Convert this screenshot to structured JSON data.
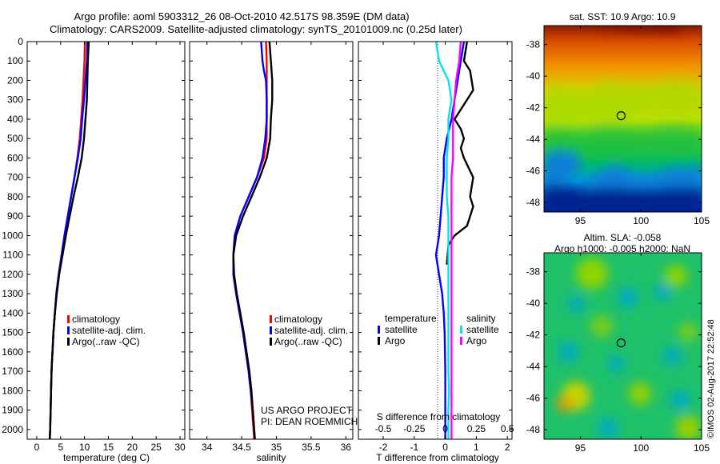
{
  "title_line1": "Argo profile: aoml 5903312_26 08-Oct-2010 42.517S 98.359E (DM data)",
  "title_line2": "Climatology: CARS2009. Satellite-adjusted climatology: synTS_20101009.nc (0.25d later)",
  "credit_line1": "US ARGO PROJECT",
  "credit_line2": "PI: DEAN ROEMMICH",
  "imos_stamp": "©IMOS 02-Aug-2017 22:52:48",
  "colors": {
    "climatology": "#ff0000",
    "satellite": "#0000ff",
    "argo": "#000000",
    "sal_satellite": "#00e5e5",
    "sal_argo": "#ff00ff"
  },
  "chart_data": [
    {
      "type": "line",
      "xlabel": "temperature (deg C)",
      "x_ticks": [
        "0",
        "5",
        "10",
        "15",
        "20",
        "25",
        "30"
      ],
      "xlim": [
        -2,
        31
      ],
      "ylim": [
        0,
        2050
      ],
      "y_reversed": true,
      "y_ticks": [
        "0",
        "100",
        "200",
        "300",
        "400",
        "500",
        "600",
        "700",
        "800",
        "900",
        "1000",
        "1100",
        "1200",
        "1300",
        "1400",
        "1500",
        "1600",
        "1700",
        "1800",
        "1900",
        "2000"
      ],
      "legend": [
        "climatology",
        "satellite-adj. clim.",
        "Argo(..raw -QC)"
      ],
      "series": [
        {
          "name": "climatology",
          "color": "#ff0000",
          "points": [
            [
              10.1,
              0
            ],
            [
              10.0,
              100
            ],
            [
              9.8,
              200
            ],
            [
              9.6,
              300
            ],
            [
              9.3,
              400
            ],
            [
              9.0,
              500
            ],
            [
              8.5,
              600
            ],
            [
              7.9,
              700
            ],
            [
              7.2,
              800
            ],
            [
              6.5,
              900
            ],
            [
              5.8,
              1000
            ],
            [
              5.2,
              1100
            ],
            [
              4.6,
              1200
            ],
            [
              4.1,
              1300
            ],
            [
              3.8,
              1400
            ],
            [
              3.5,
              1500
            ],
            [
              3.3,
              1600
            ],
            [
              3.1,
              1700
            ],
            [
              3.0,
              1800
            ],
            [
              2.9,
              1900
            ],
            [
              2.8,
              2000
            ],
            [
              2.7,
              2050
            ]
          ]
        },
        {
          "name": "satellite-adj. clim.",
          "color": "#0000ff",
          "points": [
            [
              10.6,
              0
            ],
            [
              10.5,
              100
            ],
            [
              10.2,
              200
            ],
            [
              9.9,
              300
            ],
            [
              9.5,
              400
            ],
            [
              9.2,
              500
            ],
            [
              8.6,
              600
            ],
            [
              7.9,
              700
            ],
            [
              7.2,
              800
            ],
            [
              6.5,
              900
            ],
            [
              5.8,
              1000
            ],
            [
              5.2,
              1100
            ],
            [
              4.6,
              1200
            ],
            [
              4.1,
              1300
            ],
            [
              3.8,
              1400
            ],
            [
              3.5,
              1500
            ],
            [
              3.3,
              1600
            ],
            [
              3.1,
              1700
            ],
            [
              3.0,
              1800
            ],
            [
              2.9,
              1900
            ],
            [
              2.8,
              2000
            ],
            [
              2.7,
              2050
            ]
          ]
        },
        {
          "name": "Argo(..raw -QC)",
          "color": "#000000",
          "points": [
            [
              10.9,
              0
            ],
            [
              10.7,
              100
            ],
            [
              10.6,
              200
            ],
            [
              10.5,
              300
            ],
            [
              10.2,
              400
            ],
            [
              9.9,
              500
            ],
            [
              9.4,
              600
            ],
            [
              8.6,
              700
            ],
            [
              7.7,
              800
            ],
            [
              6.9,
              900
            ],
            [
              6.1,
              1000
            ],
            [
              5.4,
              1100
            ],
            [
              4.7,
              1200
            ],
            [
              4.2,
              1300
            ],
            [
              3.8,
              1400
            ],
            [
              3.5,
              1500
            ],
            [
              3.3,
              1600
            ],
            [
              3.1,
              1700
            ],
            [
              3.0,
              1800
            ],
            [
              2.9,
              1900
            ],
            [
              2.8,
              2000
            ],
            [
              2.75,
              2050
            ]
          ]
        }
      ]
    },
    {
      "type": "line",
      "xlabel": "salinity",
      "x_ticks": [
        "34",
        "34.5",
        "35",
        "35.5",
        "36"
      ],
      "xlim": [
        33.75,
        36.1
      ],
      "ylim": [
        0,
        2050
      ],
      "y_reversed": true,
      "legend": [
        "climatology",
        "satellite-adj. clim.",
        "Argo(..raw -QC)"
      ],
      "series": [
        {
          "name": "climatology",
          "color": "#ff0000",
          "points": [
            [
              34.85,
              0
            ],
            [
              34.86,
              100
            ],
            [
              34.86,
              200
            ],
            [
              34.86,
              300
            ],
            [
              34.86,
              400
            ],
            [
              34.86,
              500
            ],
            [
              34.82,
              600
            ],
            [
              34.72,
              700
            ],
            [
              34.6,
              800
            ],
            [
              34.48,
              900
            ],
            [
              34.4,
              1000
            ],
            [
              34.38,
              1100
            ],
            [
              34.38,
              1200
            ],
            [
              34.42,
              1300
            ],
            [
              34.47,
              1400
            ],
            [
              34.52,
              1500
            ],
            [
              34.56,
              1600
            ],
            [
              34.6,
              1700
            ],
            [
              34.63,
              1800
            ],
            [
              34.65,
              1900
            ],
            [
              34.67,
              2000
            ],
            [
              34.68,
              2050
            ]
          ]
        },
        {
          "name": "satellite-adj. clim.",
          "color": "#0000ff",
          "points": [
            [
              34.78,
              0
            ],
            [
              34.8,
              100
            ],
            [
              34.82,
              150
            ],
            [
              34.85,
              200
            ],
            [
              34.86,
              300
            ],
            [
              34.86,
              400
            ],
            [
              34.84,
              500
            ],
            [
              34.8,
              600
            ],
            [
              34.72,
              700
            ],
            [
              34.6,
              800
            ],
            [
              34.48,
              900
            ],
            [
              34.4,
              1000
            ],
            [
              34.38,
              1100
            ],
            [
              34.38,
              1200
            ],
            [
              34.42,
              1300
            ],
            [
              34.47,
              1400
            ],
            [
              34.52,
              1500
            ],
            [
              34.56,
              1600
            ],
            [
              34.6,
              1700
            ],
            [
              34.63,
              1800
            ],
            [
              34.66,
              1900
            ],
            [
              34.68,
              2000
            ],
            [
              34.69,
              2050
            ]
          ]
        },
        {
          "name": "Argo(..raw -QC)",
          "color": "#000000",
          "points": [
            [
              34.9,
              0
            ],
            [
              34.92,
              100
            ],
            [
              34.94,
              200
            ],
            [
              34.94,
              300
            ],
            [
              34.92,
              400
            ],
            [
              34.91,
              500
            ],
            [
              34.86,
              600
            ],
            [
              34.76,
              700
            ],
            [
              34.64,
              800
            ],
            [
              34.52,
              900
            ],
            [
              34.42,
              1000
            ],
            [
              34.38,
              1100
            ],
            [
              34.39,
              1200
            ],
            [
              34.43,
              1300
            ],
            [
              34.48,
              1400
            ],
            [
              34.53,
              1500
            ],
            [
              34.57,
              1600
            ],
            [
              34.61,
              1700
            ],
            [
              34.64,
              1800
            ],
            [
              34.66,
              1900
            ],
            [
              34.68,
              2000
            ],
            [
              34.69,
              2050
            ]
          ]
        }
      ]
    },
    {
      "type": "line",
      "xlabel": "T difference from climatology",
      "xlabel_top": "S difference from climatology",
      "x_ticks": [
        "-2",
        "-1",
        "0",
        "1",
        "2"
      ],
      "x_ticks_top": [
        "-0.5",
        "-0.25",
        "0",
        "0.25",
        "0.5"
      ],
      "xlim": [
        -2.8,
        2.15
      ],
      "ylim": [
        0,
        2050
      ],
      "y_reversed": true,
      "legend_title_left": "temperature",
      "legend_title_right": "salinity",
      "legend": [
        "satellite",
        "Argo",
        "satellite",
        "Argo"
      ],
      "series": [
        {
          "name": "temperature satellite",
          "color": "#0000ff",
          "points": [
            [
              0.6,
              0
            ],
            [
              0.5,
              100
            ],
            [
              0.4,
              200
            ],
            [
              0.3,
              300
            ],
            [
              0.2,
              400
            ],
            [
              0.05,
              500
            ],
            [
              -0.05,
              600
            ],
            [
              -0.05,
              700
            ],
            [
              -0.1,
              800
            ],
            [
              -0.15,
              900
            ],
            [
              -0.2,
              1000
            ],
            [
              -0.3,
              1100
            ],
            [
              -0.2,
              1200
            ],
            [
              -0.1,
              1300
            ],
            [
              -0.05,
              1400
            ],
            [
              -0.02,
              1500
            ],
            [
              0.0,
              1700
            ],
            [
              0.0,
              2050
            ]
          ]
        },
        {
          "name": "temperature Argo",
          "color": "#000000",
          "points": [
            [
              0.7,
              0
            ],
            [
              0.6,
              100
            ],
            [
              0.8,
              150
            ],
            [
              0.9,
              250
            ],
            [
              0.5,
              350
            ],
            [
              0.3,
              400
            ],
            [
              0.5,
              450
            ],
            [
              0.6,
              500
            ],
            [
              0.5,
              550
            ],
            [
              0.6,
              600
            ],
            [
              0.9,
              700
            ],
            [
              0.8,
              800
            ],
            [
              0.9,
              850
            ],
            [
              0.7,
              950
            ],
            [
              0.3,
              1000
            ],
            [
              0.1,
              1050
            ],
            [
              0.05,
              1150
            ]
          ]
        },
        {
          "name": "salinity satellite",
          "color": "#00e5e5",
          "points": [
            [
              -0.3,
              0
            ],
            [
              -0.2,
              100
            ],
            [
              0.1,
              200
            ],
            [
              0.2,
              300
            ],
            [
              0.1,
              400
            ],
            [
              0.1,
              500
            ],
            [
              0.05,
              600
            ],
            [
              0.05,
              700
            ],
            [
              0.05,
              800
            ],
            [
              0.1,
              900
            ],
            [
              0.1,
              1000
            ],
            [
              0.1,
              1100
            ],
            [
              0.1,
              1200
            ],
            [
              0.1,
              1300
            ],
            [
              0.1,
              1400
            ],
            [
              0.1,
              1500
            ],
            [
              0.1,
              1600
            ],
            [
              0.1,
              1700
            ],
            [
              0.12,
              1800
            ],
            [
              0.1,
              1900
            ],
            [
              0.1,
              2050
            ]
          ]
        },
        {
          "name": "salinity Argo",
          "color": "#ff00ff",
          "points": [
            [
              0.5,
              0
            ],
            [
              0.45,
              100
            ],
            [
              0.35,
              200
            ],
            [
              0.3,
              300
            ],
            [
              0.25,
              400
            ],
            [
              0.25,
              500
            ],
            [
              0.25,
              600
            ],
            [
              0.2,
              700
            ],
            [
              0.2,
              800
            ],
            [
              0.2,
              900
            ],
            [
              0.2,
              1000
            ],
            [
              0.2,
              1100
            ],
            [
              0.2,
              1200
            ],
            [
              0.2,
              1300
            ],
            [
              0.2,
              1400
            ],
            [
              0.2,
              1500
            ],
            [
              0.2,
              1600
            ],
            [
              0.2,
              1700
            ],
            [
              0.2,
              1800
            ],
            [
              0.2,
              1900
            ],
            [
              0.2,
              2050
            ]
          ]
        }
      ]
    },
    {
      "type": "heatmap",
      "title": "sat. SST: 10.9 Argo: 10.9",
      "x_ticks": [
        "95",
        "100",
        "105"
      ],
      "y_ticks": [
        "-38",
        "-40",
        "-42",
        "-44",
        "-46",
        "-48"
      ],
      "xlim": [
        92,
        105
      ],
      "ylim": [
        -48.6,
        -36.8
      ],
      "marker": {
        "lon": 98.36,
        "lat": -42.5
      }
    },
    {
      "type": "heatmap",
      "title_line1": "Altim. SLA: -0.058",
      "title_line2": "Argo h1000: -0.005 h2000: NaN",
      "x_ticks": [
        "95",
        "100",
        "105"
      ],
      "y_ticks": [
        "-38",
        "-40",
        "-42",
        "-44",
        "-46",
        "-48"
      ],
      "xlim": [
        92,
        105
      ],
      "ylim": [
        -48.6,
        -36.8
      ],
      "marker": {
        "lon": 98.36,
        "lat": -42.5
      }
    }
  ]
}
